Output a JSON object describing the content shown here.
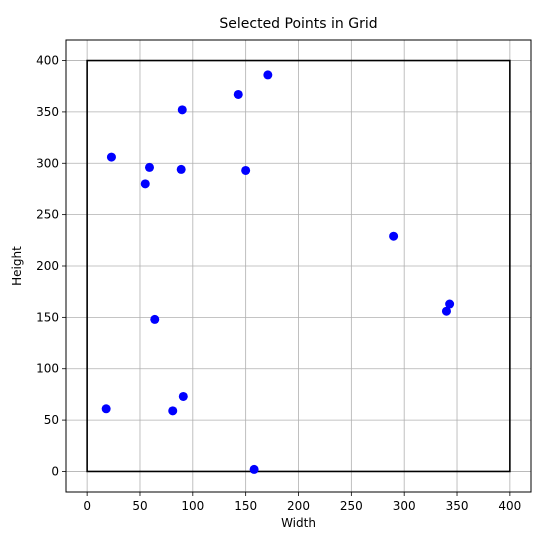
{
  "chart_data": {
    "type": "scatter",
    "title": "Selected Points in Grid",
    "xlabel": "Width",
    "ylabel": "Height",
    "xlim": [
      -20,
      420
    ],
    "ylim": [
      -20,
      420
    ],
    "xticks": [
      0,
      50,
      100,
      150,
      200,
      250,
      300,
      350,
      400
    ],
    "yticks": [
      0,
      50,
      100,
      150,
      200,
      250,
      300,
      350,
      400
    ],
    "grid": true,
    "boundary": {
      "x": [
        0,
        400
      ],
      "y": [
        0,
        400
      ],
      "color": "#000000"
    },
    "point_color": "#0000ff",
    "points": [
      {
        "x": 18,
        "y": 61
      },
      {
        "x": 23,
        "y": 306
      },
      {
        "x": 55,
        "y": 280
      },
      {
        "x": 59,
        "y": 296
      },
      {
        "x": 64,
        "y": 148
      },
      {
        "x": 81,
        "y": 59
      },
      {
        "x": 89,
        "y": 294
      },
      {
        "x": 90,
        "y": 352
      },
      {
        "x": 91,
        "y": 73
      },
      {
        "x": 143,
        "y": 367
      },
      {
        "x": 150,
        "y": 293
      },
      {
        "x": 158,
        "y": 2
      },
      {
        "x": 171,
        "y": 386
      },
      {
        "x": 290,
        "y": 229
      },
      {
        "x": 340,
        "y": 156
      },
      {
        "x": 343,
        "y": 163
      }
    ]
  }
}
